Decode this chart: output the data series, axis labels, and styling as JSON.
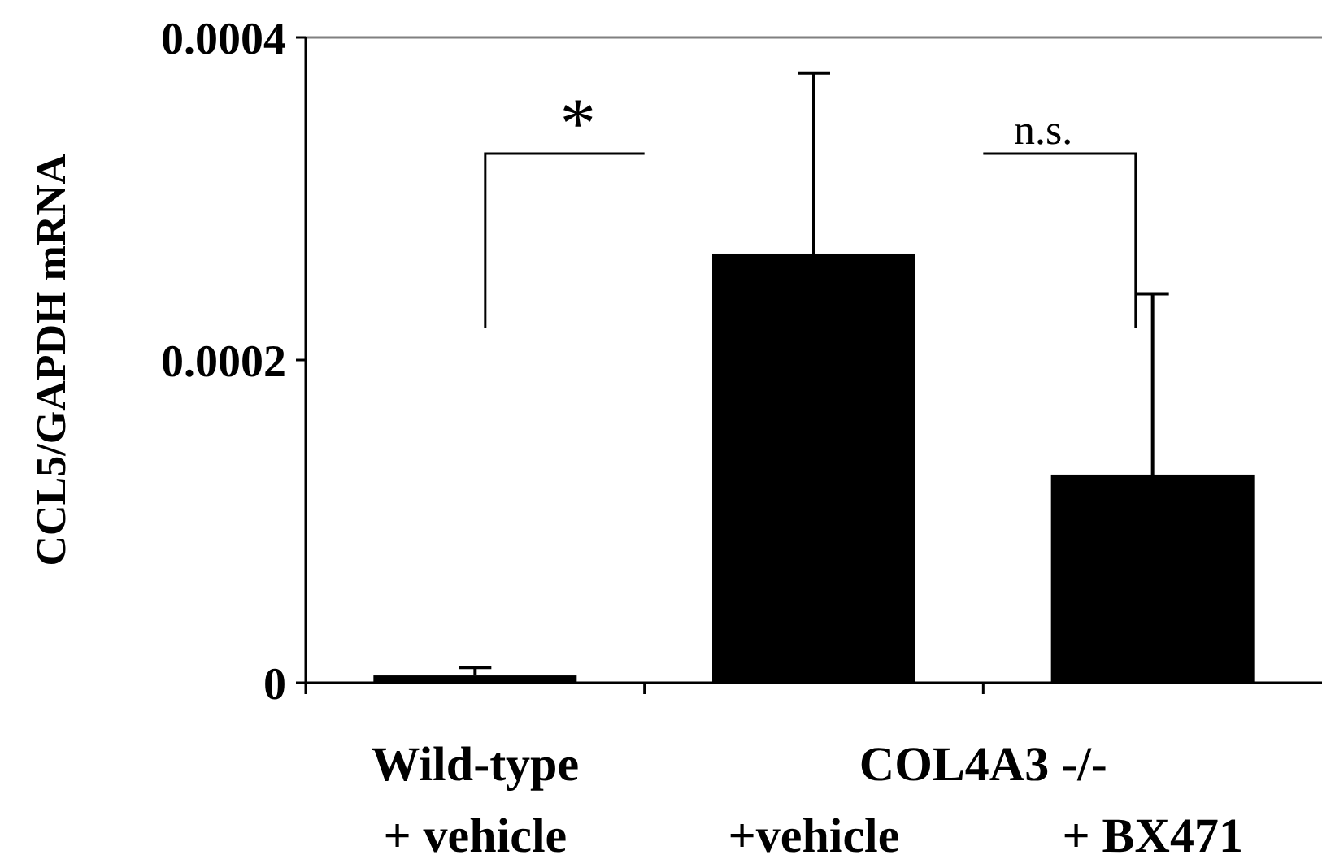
{
  "chart_data": {
    "type": "bar",
    "ylabel": "CCL5/GAPDH mRNA",
    "categories": [
      "Wild-type\n+ vehicle",
      "+vehicle",
      "+ BX471"
    ],
    "values": [
      4.5e-06,
      0.000266,
      0.000129
    ],
    "errors": [
      5e-06,
      0.000112,
      0.000112
    ],
    "color": "#000000",
    "ylim": [
      0,
      0.0004
    ],
    "yticks": [
      0,
      0.0002,
      0.0004
    ],
    "grid": false,
    "annotations": [
      "*",
      "n.s.",
      {
        "text": "COL4A3 -/-"
      }
    ]
  }
}
